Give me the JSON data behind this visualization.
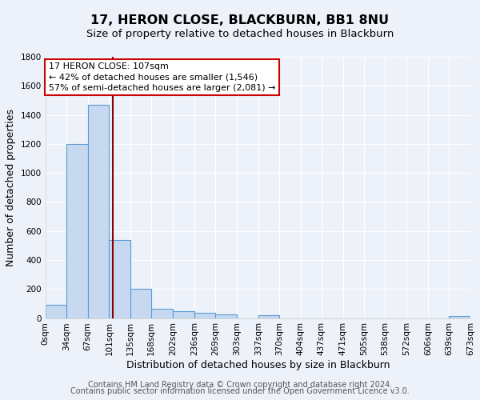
{
  "title": "17, HERON CLOSE, BLACKBURN, BB1 8NU",
  "subtitle": "Size of property relative to detached houses in Blackburn",
  "xlabel": "Distribution of detached houses by size in Blackburn",
  "ylabel": "Number of detached properties",
  "bin_edges": [
    0,
    34,
    67,
    101,
    135,
    168,
    202,
    236,
    269,
    303,
    337,
    370,
    404,
    437,
    471,
    505,
    538,
    572,
    606,
    639,
    673
  ],
  "bar_heights": [
    90,
    1200,
    1470,
    540,
    200,
    65,
    48,
    35,
    25,
    0,
    20,
    0,
    0,
    0,
    0,
    0,
    0,
    0,
    0,
    15
  ],
  "bar_color": "#c6d9f0",
  "bar_edge_color": "#5b9bd5",
  "property_size": 107,
  "vline_color": "#8b0000",
  "annotation_text": "17 HERON CLOSE: 107sqm\n← 42% of detached houses are smaller (1,546)\n57% of semi-detached houses are larger (2,081) →",
  "annotation_box_edge": "#cc0000",
  "annotation_box_fill": "#ffffff",
  "ylim": [
    0,
    1800
  ],
  "yticks": [
    0,
    200,
    400,
    600,
    800,
    1000,
    1200,
    1400,
    1600,
    1800
  ],
  "tick_labels": [
    "0sqm",
    "34sqm",
    "67sqm",
    "101sqm",
    "135sqm",
    "168sqm",
    "202sqm",
    "236sqm",
    "269sqm",
    "303sqm",
    "337sqm",
    "370sqm",
    "404sqm",
    "437sqm",
    "471sqm",
    "505sqm",
    "538sqm",
    "572sqm",
    "606sqm",
    "639sqm",
    "673sqm"
  ],
  "footer1": "Contains HM Land Registry data © Crown copyright and database right 2024.",
  "footer2": "Contains public sector information licensed under the Open Government Licence v3.0.",
  "background_color": "#edf2fa",
  "plot_background": "#edf2fa",
  "grid_color": "#ffffff",
  "title_fontsize": 11.5,
  "subtitle_fontsize": 9.5,
  "axis_label_fontsize": 9,
  "tick_fontsize": 7.5,
  "footer_fontsize": 7
}
